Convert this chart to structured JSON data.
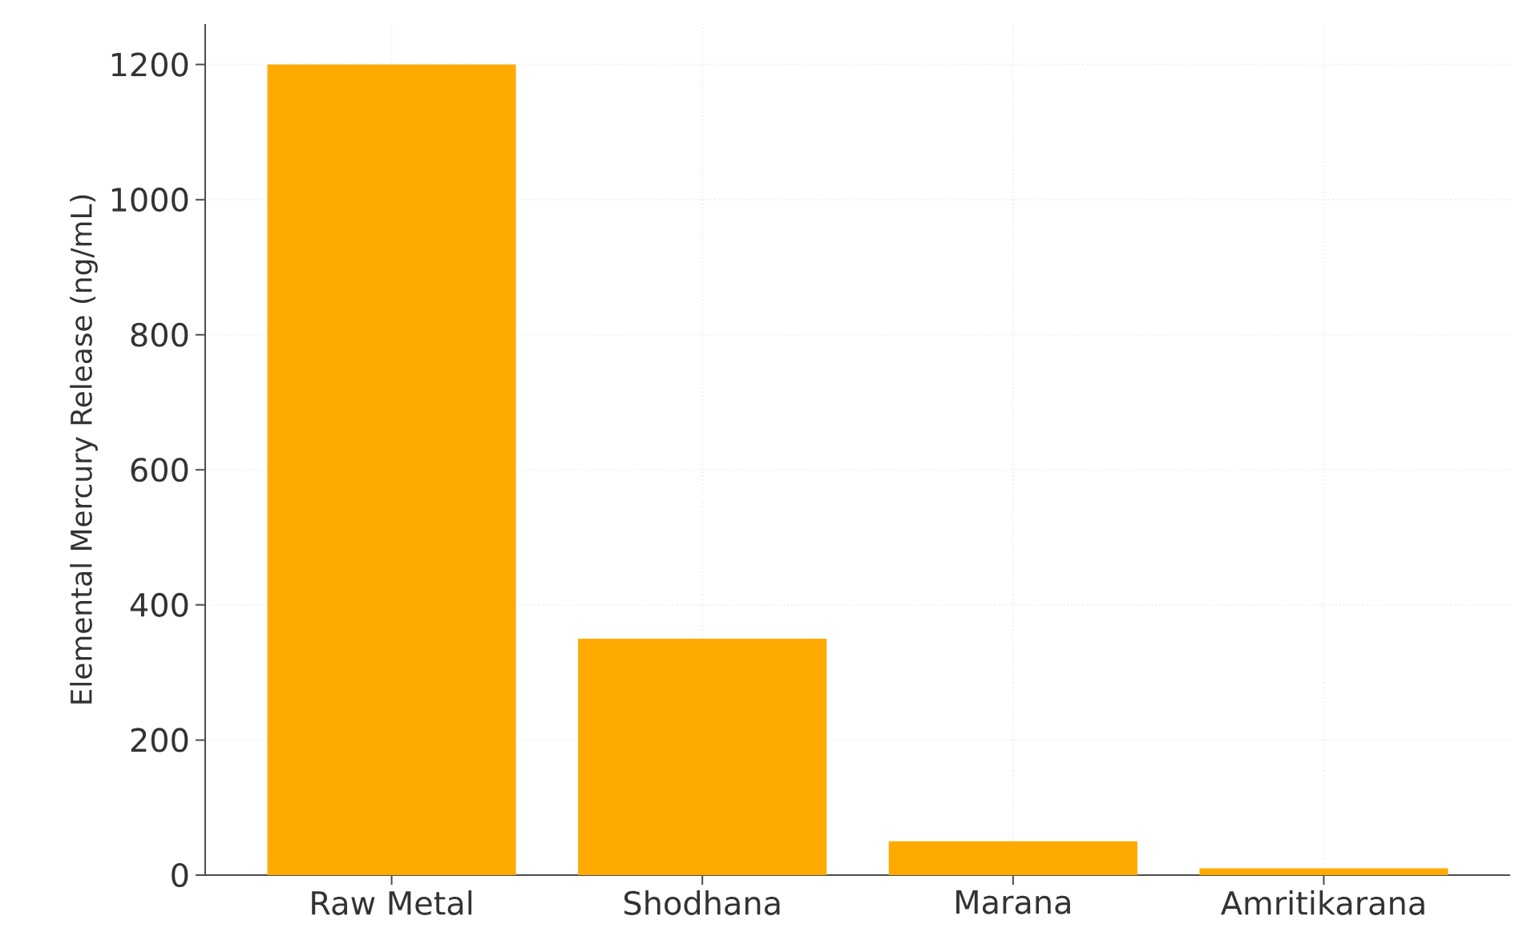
{
  "chart_data": {
    "type": "bar",
    "ylabel": "Elemental Mercury Release (ng/mL)",
    "categories": [
      "Raw Metal",
      "Shodhana",
      "Marana",
      "Amritikarana"
    ],
    "values": [
      1200,
      350,
      50,
      10
    ],
    "color": "#ffaa00",
    "ylim": [
      0,
      1260
    ],
    "yticks": [
      0,
      200,
      400,
      600,
      800,
      1000,
      1200
    ],
    "grid": true
  }
}
